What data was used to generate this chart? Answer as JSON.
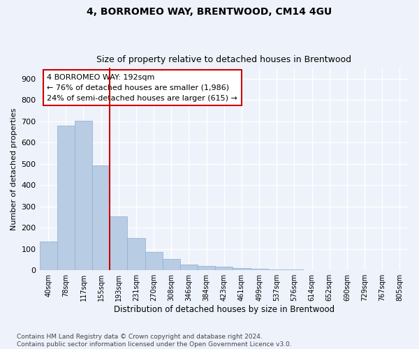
{
  "title1": "4, BORROMEO WAY, BRENTWOOD, CM14 4GU",
  "title2": "Size of property relative to detached houses in Brentwood",
  "xlabel": "Distribution of detached houses by size in Brentwood",
  "ylabel": "Number of detached properties",
  "bar_labels": [
    "40sqm",
    "78sqm",
    "117sqm",
    "155sqm",
    "193sqm",
    "231sqm",
    "270sqm",
    "308sqm",
    "346sqm",
    "384sqm",
    "423sqm",
    "461sqm",
    "499sqm",
    "537sqm",
    "576sqm",
    "614sqm",
    "652sqm",
    "690sqm",
    "729sqm",
    "767sqm",
    "805sqm"
  ],
  "bar_values": [
    135,
    678,
    703,
    492,
    252,
    150,
    85,
    52,
    26,
    20,
    18,
    12,
    7,
    4,
    3,
    2,
    2,
    1,
    1,
    1,
    1
  ],
  "bar_color": "#b8cce4",
  "bar_edge_color": "#8ab0d0",
  "vline_color": "#cc0000",
  "annotation_text": "4 BORROMEO WAY: 192sqm\n← 76% of detached houses are smaller (1,986)\n24% of semi-detached houses are larger (615) →",
  "annotation_box_color": "#cc0000",
  "ylim": [
    0,
    950
  ],
  "yticks": [
    0,
    100,
    200,
    300,
    400,
    500,
    600,
    700,
    800,
    900
  ],
  "footer": "Contains HM Land Registry data © Crown copyright and database right 2024.\nContains public sector information licensed under the Open Government Licence v3.0.",
  "bg_color": "#eef2fb",
  "plot_bg_color": "#eef2fb",
  "grid_color": "#ffffff"
}
